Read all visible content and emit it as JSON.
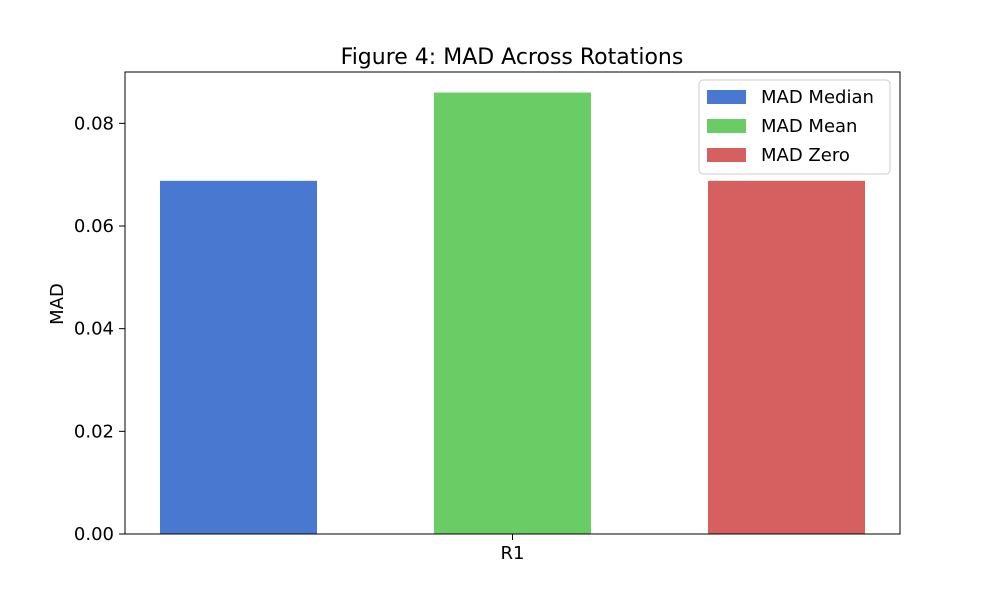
{
  "chart_data": {
    "type": "bar",
    "title": "Figure 4: MAD Across Rotations",
    "xlabel": "",
    "ylabel": "MAD",
    "ylim": [
      0,
      0.09
    ],
    "yticks": [
      "0.00",
      "0.02",
      "0.04",
      "0.06",
      "0.08"
    ],
    "ytick_values": [
      0,
      0.02,
      0.04,
      0.06,
      0.08
    ],
    "categories": [
      "R1"
    ],
    "series": [
      {
        "name": "MAD Median",
        "values": [
          0.0688
        ],
        "color": "#4878cf"
      },
      {
        "name": "MAD Mean",
        "values": [
          0.086
        ],
        "color": "#6acc65"
      },
      {
        "name": "MAD Zero",
        "values": [
          0.0688
        ],
        "color": "#d65f5f"
      }
    ],
    "legend_position": "top-right",
    "grid": false
  }
}
